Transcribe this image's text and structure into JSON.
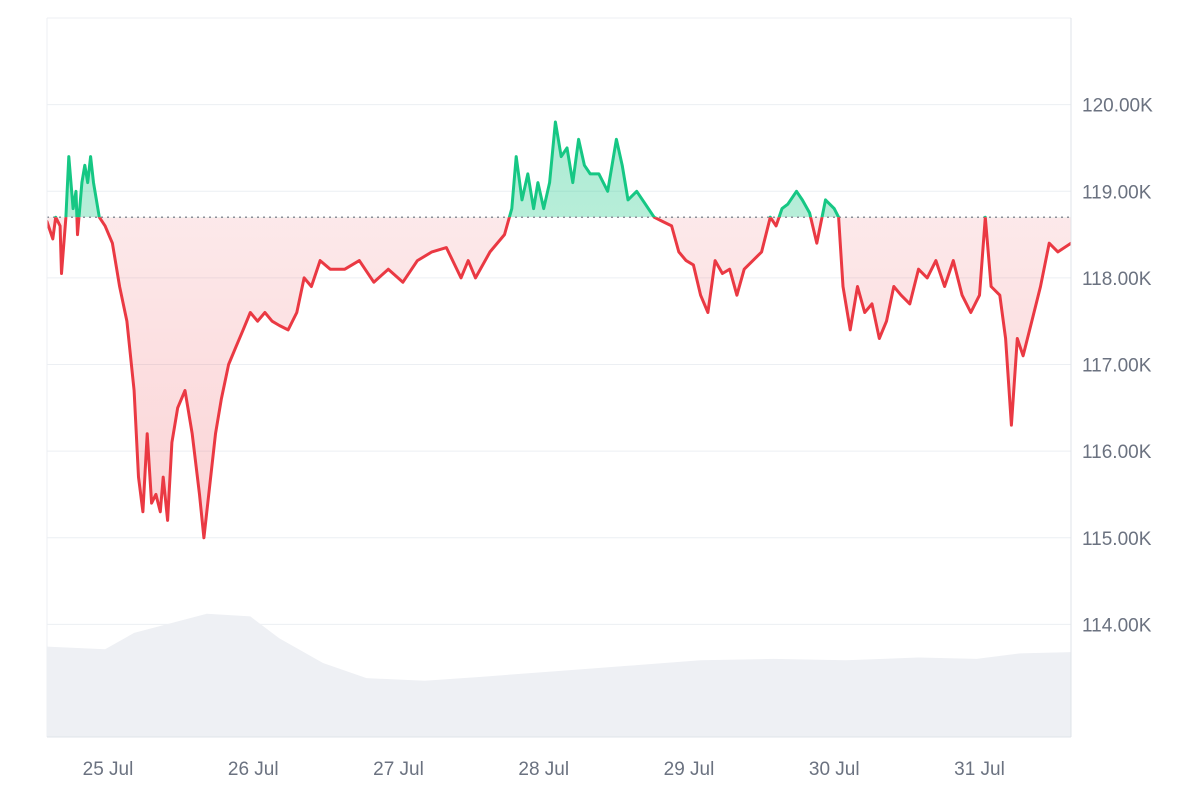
{
  "chart_data": {
    "type": "line",
    "baseline": 118700,
    "ylim": [
      112700,
      121000
    ],
    "xlim": [
      0,
      7.05
    ],
    "y_ticks": [
      {
        "value": 120000,
        "label": "120.00K"
      },
      {
        "value": 119000,
        "label": "119.00K"
      },
      {
        "value": 118000,
        "label": "118.00K"
      },
      {
        "value": 117000,
        "label": "117.00K"
      },
      {
        "value": 116000,
        "label": "116.00K"
      },
      {
        "value": 115000,
        "label": "115.00K"
      },
      {
        "value": 114000,
        "label": "114.00K"
      }
    ],
    "x_ticks": [
      {
        "value": 0.42,
        "label": "25 Jul"
      },
      {
        "value": 1.42,
        "label": "26 Jul"
      },
      {
        "value": 2.42,
        "label": "27 Jul"
      },
      {
        "value": 3.42,
        "label": "28 Jul"
      },
      {
        "value": 4.42,
        "label": "29 Jul"
      },
      {
        "value": 5.42,
        "label": "30 Jul"
      },
      {
        "value": 6.42,
        "label": "31 Jul"
      }
    ],
    "series": [
      {
        "values": [
          [
            0.0,
            118650
          ],
          [
            0.04,
            118450
          ],
          [
            0.06,
            118700
          ],
          [
            0.09,
            118600
          ],
          [
            0.1,
            118050
          ],
          [
            0.13,
            118700
          ],
          [
            0.15,
            119400
          ],
          [
            0.18,
            118800
          ],
          [
            0.2,
            119000
          ],
          [
            0.21,
            118500
          ],
          [
            0.24,
            119100
          ],
          [
            0.26,
            119300
          ],
          [
            0.28,
            119100
          ],
          [
            0.3,
            119400
          ],
          [
            0.32,
            119100
          ],
          [
            0.34,
            118900
          ],
          [
            0.36,
            118700
          ],
          [
            0.4,
            118600
          ],
          [
            0.45,
            118400
          ],
          [
            0.5,
            117900
          ],
          [
            0.55,
            117500
          ],
          [
            0.6,
            116700
          ],
          [
            0.63,
            115700
          ],
          [
            0.66,
            115300
          ],
          [
            0.69,
            116200
          ],
          [
            0.72,
            115400
          ],
          [
            0.75,
            115500
          ],
          [
            0.78,
            115300
          ],
          [
            0.8,
            115700
          ],
          [
            0.83,
            115200
          ],
          [
            0.86,
            116100
          ],
          [
            0.9,
            116500
          ],
          [
            0.95,
            116700
          ],
          [
            1.0,
            116200
          ],
          [
            1.05,
            115500
          ],
          [
            1.08,
            115000
          ],
          [
            1.12,
            115600
          ],
          [
            1.16,
            116200
          ],
          [
            1.2,
            116600
          ],
          [
            1.25,
            117000
          ],
          [
            1.3,
            117200
          ],
          [
            1.35,
            117400
          ],
          [
            1.4,
            117600
          ],
          [
            1.45,
            117500
          ],
          [
            1.5,
            117600
          ],
          [
            1.55,
            117500
          ],
          [
            1.6,
            117450
          ],
          [
            1.66,
            117400
          ],
          [
            1.72,
            117600
          ],
          [
            1.77,
            118000
          ],
          [
            1.82,
            117900
          ],
          [
            1.88,
            118200
          ],
          [
            1.95,
            118100
          ],
          [
            2.05,
            118100
          ],
          [
            2.15,
            118200
          ],
          [
            2.25,
            117950
          ],
          [
            2.35,
            118100
          ],
          [
            2.45,
            117950
          ],
          [
            2.55,
            118200
          ],
          [
            2.65,
            118300
          ],
          [
            2.75,
            118350
          ],
          [
            2.85,
            118000
          ],
          [
            2.9,
            118200
          ],
          [
            2.95,
            118000
          ],
          [
            3.05,
            118300
          ],
          [
            3.15,
            118500
          ],
          [
            3.2,
            118800
          ],
          [
            3.23,
            119400
          ],
          [
            3.27,
            118900
          ],
          [
            3.31,
            119200
          ],
          [
            3.35,
            118800
          ],
          [
            3.38,
            119100
          ],
          [
            3.42,
            118800
          ],
          [
            3.46,
            119100
          ],
          [
            3.5,
            119800
          ],
          [
            3.54,
            119400
          ],
          [
            3.58,
            119500
          ],
          [
            3.62,
            119100
          ],
          [
            3.66,
            119600
          ],
          [
            3.7,
            119300
          ],
          [
            3.74,
            119200
          ],
          [
            3.8,
            119200
          ],
          [
            3.86,
            119000
          ],
          [
            3.92,
            119600
          ],
          [
            3.96,
            119300
          ],
          [
            4.0,
            118900
          ],
          [
            4.06,
            119000
          ],
          [
            4.12,
            118850
          ],
          [
            4.18,
            118700
          ],
          [
            4.24,
            118650
          ],
          [
            4.3,
            118600
          ],
          [
            4.35,
            118300
          ],
          [
            4.4,
            118200
          ],
          [
            4.45,
            118150
          ],
          [
            4.5,
            117800
          ],
          [
            4.55,
            117600
          ],
          [
            4.6,
            118200
          ],
          [
            4.65,
            118050
          ],
          [
            4.7,
            118100
          ],
          [
            4.75,
            117800
          ],
          [
            4.8,
            118100
          ],
          [
            4.86,
            118200
          ],
          [
            4.92,
            118300
          ],
          [
            4.98,
            118700
          ],
          [
            5.02,
            118600
          ],
          [
            5.06,
            118800
          ],
          [
            5.1,
            118850
          ],
          [
            5.16,
            119000
          ],
          [
            5.2,
            118900
          ],
          [
            5.25,
            118750
          ],
          [
            5.3,
            118400
          ],
          [
            5.36,
            118900
          ],
          [
            5.42,
            118800
          ],
          [
            5.45,
            118700
          ],
          [
            5.48,
            117900
          ],
          [
            5.53,
            117400
          ],
          [
            5.58,
            117900
          ],
          [
            5.63,
            117600
          ],
          [
            5.68,
            117700
          ],
          [
            5.73,
            117300
          ],
          [
            5.78,
            117500
          ],
          [
            5.83,
            117900
          ],
          [
            5.88,
            117800
          ],
          [
            5.94,
            117700
          ],
          [
            6.0,
            118100
          ],
          [
            6.06,
            118000
          ],
          [
            6.12,
            118200
          ],
          [
            6.18,
            117900
          ],
          [
            6.24,
            118200
          ],
          [
            6.3,
            117800
          ],
          [
            6.36,
            117600
          ],
          [
            6.42,
            117800
          ],
          [
            6.46,
            118700
          ],
          [
            6.5,
            117900
          ],
          [
            6.56,
            117800
          ],
          [
            6.6,
            117300
          ],
          [
            6.64,
            116300
          ],
          [
            6.68,
            117300
          ],
          [
            6.72,
            117100
          ],
          [
            6.78,
            117500
          ],
          [
            6.84,
            117900
          ],
          [
            6.9,
            118400
          ],
          [
            6.96,
            118300
          ],
          [
            7.05,
            118400
          ]
        ]
      }
    ],
    "volume_values": [
      [
        0.0,
        0.66
      ],
      [
        0.4,
        0.64
      ],
      [
        0.6,
        0.76
      ],
      [
        1.1,
        0.9
      ],
      [
        1.4,
        0.88
      ],
      [
        1.6,
        0.72
      ],
      [
        1.9,
        0.54
      ],
      [
        2.2,
        0.43
      ],
      [
        2.6,
        0.41
      ],
      [
        3.0,
        0.44
      ],
      [
        3.5,
        0.48
      ],
      [
        4.0,
        0.52
      ],
      [
        4.5,
        0.56
      ],
      [
        5.0,
        0.57
      ],
      [
        5.5,
        0.56
      ],
      [
        6.0,
        0.58
      ],
      [
        6.4,
        0.57
      ],
      [
        6.7,
        0.61
      ],
      [
        7.05,
        0.62
      ]
    ],
    "volume_scale": 1.0,
    "colors": {
      "up": "#16c784",
      "down": "#ea3943",
      "grid": "#eceff3",
      "baseline": "#8b8f99",
      "volume": "#eef0f4",
      "axis": "#dfe3e8",
      "label": "#6b7280"
    },
    "grid": true
  }
}
